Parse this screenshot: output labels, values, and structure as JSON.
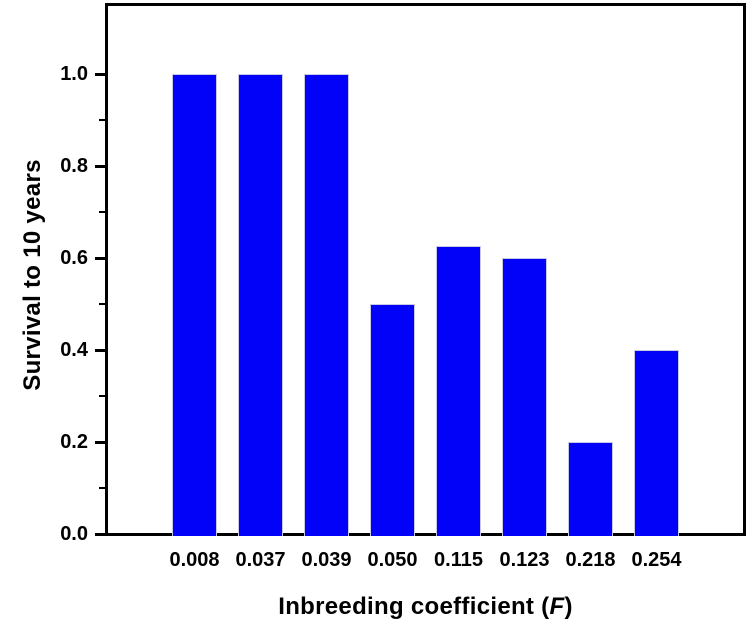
{
  "chart_data": {
    "type": "bar",
    "categories": [
      "0.008",
      "0.037",
      "0.039",
      "0.050",
      "0.115",
      "0.123",
      "0.218",
      "0.254"
    ],
    "values": [
      1.0,
      1.0,
      1.0,
      0.5,
      0.625,
      0.6,
      0.2,
      0.4
    ],
    "title": "",
    "xlabel": "Inbreeding coefficient (F)",
    "xlabel_parts": {
      "prefix": "Inbreeding coefficient (",
      "italic": "F",
      "suffix": ")"
    },
    "ylabel": "Survival to 10 years",
    "ylim": [
      0,
      1.15
    ],
    "ytick_values": [
      0.0,
      0.2,
      0.4,
      0.6,
      0.8,
      1.0
    ],
    "ytick_labels": [
      "0.0",
      "0.2",
      "0.4",
      "0.6",
      "0.8",
      "1.0"
    ],
    "yminor_values": [
      0.1,
      0.3,
      0.5,
      0.7,
      0.9
    ],
    "grid": false,
    "legend": false,
    "colors": {
      "bar": "#0202f8",
      "axis": "#000000",
      "background": "#ffffff"
    }
  }
}
